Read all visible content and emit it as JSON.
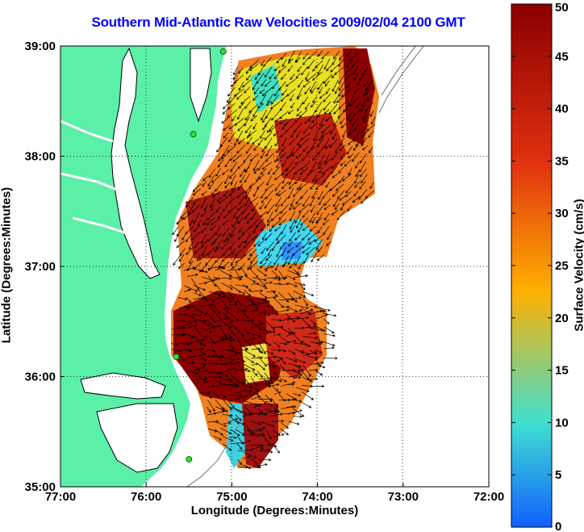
{
  "title": "Southern Mid-Atlantic Raw Velocities 2009/02/04 2100 GMT",
  "x_axis": {
    "label": "Longitude (Degrees:Minutes)",
    "ticks": [
      "77:00",
      "76:00",
      "75:00",
      "74:00",
      "73:00",
      "72:00"
    ]
  },
  "y_axis": {
    "label": "Latitude (Degrees:Minutes)",
    "ticks": [
      "39:00",
      "38:00",
      "37:00",
      "36:00",
      "35:00"
    ]
  },
  "colorbar": {
    "label": "Surface Velocity (cm/s)",
    "ticks": [
      "0",
      "5",
      "10",
      "15",
      "20",
      "25",
      "30",
      "35",
      "40",
      "45",
      "50"
    ],
    "min": 0,
    "max": 50
  },
  "chart_data": {
    "type": "heatmap",
    "title": "Southern Mid-Atlantic Raw Velocities 2009/02/04 2100 GMT",
    "xlabel": "Longitude (Degrees:Minutes)",
    "ylabel": "Latitude (Degrees:Minutes)",
    "xlim": [
      -77,
      -72
    ],
    "ylim": [
      35,
      39
    ],
    "colorbar_label": "Surface Velocity (cm/s)",
    "clim": [
      0,
      50
    ],
    "grid": true,
    "colors": {
      "land": "#5af0a8",
      "water": "#ffffff",
      "title": "#0000ff",
      "station": "#33dd33"
    },
    "stations": [
      {
        "lon": -75.1,
        "lat": 38.95
      },
      {
        "lon": -75.45,
        "lat": 38.2
      },
      {
        "lon": -75.65,
        "lat": 36.18
      },
      {
        "lon": -75.5,
        "lat": 35.25
      }
    ]
  }
}
